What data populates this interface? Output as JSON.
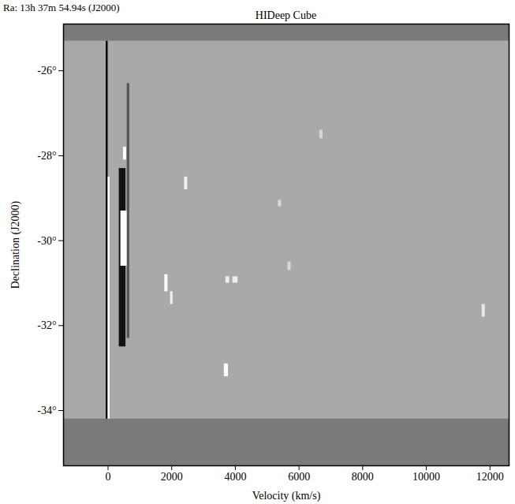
{
  "chart_data": {
    "type": "image",
    "title": "HIDeep Cube",
    "subtitle": "Ra: 13h 37m 54.94s (J2000)",
    "x_label": "Velocity (km/s)",
    "y_label": "Declination (J2000)",
    "background": "#a9a9a9",
    "xlim": [
      -1400,
      12600
    ],
    "ylim": [
      -35.3,
      -24.9
    ],
    "xticks": [
      0,
      2000,
      4000,
      6000,
      8000,
      10000,
      12000
    ],
    "yticks": [
      {
        "value": -34,
        "label": "-34°"
      },
      {
        "value": -32,
        "label": "-32°"
      },
      {
        "value": -30,
        "label": "-30°"
      },
      {
        "value": -28,
        "label": "-28°"
      },
      {
        "value": -26,
        "label": "-26°"
      }
    ],
    "features": {
      "x_low": [
        -60,
        0,
        350,
        400,
        480,
        600,
        1780,
        1960,
        2400,
        3650,
        3700,
        3920,
        5350,
        5650,
        6650,
        11750,
        -1400,
        -1400
      ],
      "x_high": [
        0,
        60,
        560,
        620,
        580,
        680,
        1880,
        2040,
        2500,
        3780,
        3820,
        4080,
        5450,
        5750,
        6750,
        11850,
        12600,
        12600
      ],
      "y_low": [
        -35.2,
        -35.0,
        -32.5,
        -30.6,
        -28.1,
        -32.3,
        -31.2,
        -31.5,
        -28.8,
        -33.2,
        -31.0,
        -31.0,
        -29.2,
        -30.7,
        -27.6,
        -31.8,
        -35.3,
        -25.3
      ],
      "y_high": [
        -25.3,
        -28.5,
        -28.3,
        -29.3,
        -27.8,
        -26.3,
        -30.8,
        -31.2,
        -28.5,
        -32.9,
        -30.85,
        -30.85,
        -29.05,
        -30.5,
        -27.4,
        -31.5,
        -34.2,
        -24.9
      ],
      "colors": [
        "#000000",
        "#ffffff",
        "#111111",
        "#ffffff",
        "#ffffff",
        "#555555",
        "#ffffff",
        "#f0f0f0",
        "#f0f0f0",
        "#ffffff",
        "#eeeeee",
        "#eeeeee",
        "#d8d8d8",
        "#d8d8d8",
        "#d8d8d8",
        "#e8e8e8",
        "#7a7a7a",
        "#7a7a7a"
      ]
    }
  }
}
